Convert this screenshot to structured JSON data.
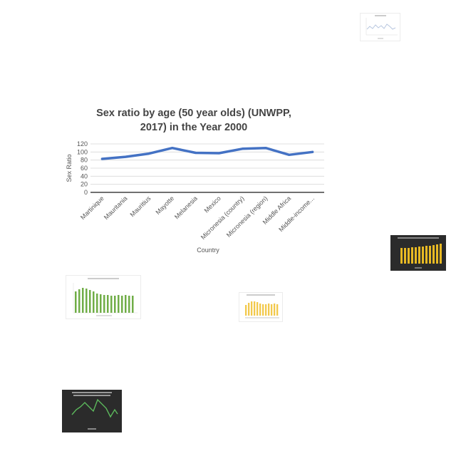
{
  "chart_data": {
    "type": "line",
    "title_lines": [
      "Sex ratio by age (50 year olds) (UNWPP,",
      "2017) in the Year 2000"
    ],
    "xlabel": "Country",
    "ylabel": "Sex Ratio",
    "ylim": [
      0,
      120
    ],
    "yticks": [
      0,
      20,
      40,
      60,
      80,
      100,
      120
    ],
    "grid": true,
    "categories": [
      "Martinique",
      "Mauritania",
      "Mauritius",
      "Mayotte",
      "Melanesia",
      "Mexico",
      "Micronesia (country)",
      "Micronesia (region)",
      "Middle Africa",
      "Middle-income..."
    ],
    "series": [
      {
        "values": [
          83,
          88,
          96,
          110,
          98,
          97,
          108,
          110,
          93,
          100
        ],
        "color": "#4472c4"
      }
    ]
  },
  "colors": {
    "line": "#4472c4",
    "grid": "#d9d9d9",
    "axis": "#404040",
    "text": "#555555"
  }
}
